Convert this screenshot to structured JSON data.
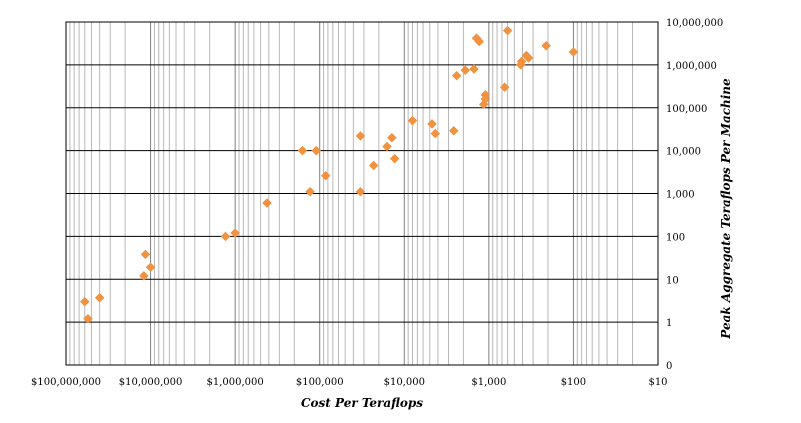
{
  "chart_data": {
    "type": "scatter",
    "xlabel": "Cost Per Teraflops",
    "ylabel": "Peak Aggregate Teraflops Per Machine",
    "x_scale": "log",
    "y_scale": "log",
    "x_reversed": true,
    "xlim": [
      100000000,
      10
    ],
    "ylim": [
      0.1,
      10000000
    ],
    "x_tick_values": [
      100000000,
      10000000,
      1000000,
      100000,
      10000,
      1000,
      100,
      10
    ],
    "x_tick_labels": [
      "$100,000,000",
      "$10,000,000",
      "$1,000,000",
      "$100,000",
      "$10,000",
      "$1,000",
      "$100",
      "$10"
    ],
    "y_tick_values": [
      0.1,
      1,
      10,
      100,
      1000,
      10000,
      100000,
      1000000,
      10000000
    ],
    "y_tick_labels": [
      "0",
      "1",
      "10",
      "100",
      "1,000",
      "10,000",
      "100,000",
      "1,000,000",
      "10,000,000"
    ],
    "grid": true,
    "marker": "diamond",
    "marker_color": "#F0923F",
    "points": [
      {
        "x": 60000000,
        "y": 3
      },
      {
        "x": 55000000,
        "y": 1.2
      },
      {
        "x": 40000000,
        "y": 3.7
      },
      {
        "x": 12000000,
        "y": 12
      },
      {
        "x": 11500000,
        "y": 38
      },
      {
        "x": 10000000,
        "y": 19
      },
      {
        "x": 1300000,
        "y": 100
      },
      {
        "x": 1000000,
        "y": 120
      },
      {
        "x": 420000,
        "y": 600
      },
      {
        "x": 160000,
        "y": 10000
      },
      {
        "x": 130000,
        "y": 1100
      },
      {
        "x": 110000,
        "y": 10000
      },
      {
        "x": 85000,
        "y": 2600
      },
      {
        "x": 33000,
        "y": 22000
      },
      {
        "x": 33000,
        "y": 1100
      },
      {
        "x": 23000,
        "y": 4500
      },
      {
        "x": 16000,
        "y": 12500
      },
      {
        "x": 14000,
        "y": 20000
      },
      {
        "x": 13000,
        "y": 6500
      },
      {
        "x": 8000,
        "y": 50000
      },
      {
        "x": 4700,
        "y": 42000
      },
      {
        "x": 4300,
        "y": 25000
      },
      {
        "x": 2600,
        "y": 29000
      },
      {
        "x": 2400,
        "y": 560000
      },
      {
        "x": 1900,
        "y": 750000
      },
      {
        "x": 1500,
        "y": 800000
      },
      {
        "x": 1400,
        "y": 4200000
      },
      {
        "x": 1300,
        "y": 3500000
      },
      {
        "x": 1150,
        "y": 120000
      },
      {
        "x": 1100,
        "y": 200000
      },
      {
        "x": 1100,
        "y": 160000
      },
      {
        "x": 650,
        "y": 300000
      },
      {
        "x": 600,
        "y": 6300000
      },
      {
        "x": 420,
        "y": 1000000
      },
      {
        "x": 410,
        "y": 1200000
      },
      {
        "x": 360,
        "y": 1650000
      },
      {
        "x": 340,
        "y": 1450000
      },
      {
        "x": 210,
        "y": 2800000
      },
      {
        "x": 100,
        "y": 2000000
      }
    ]
  }
}
